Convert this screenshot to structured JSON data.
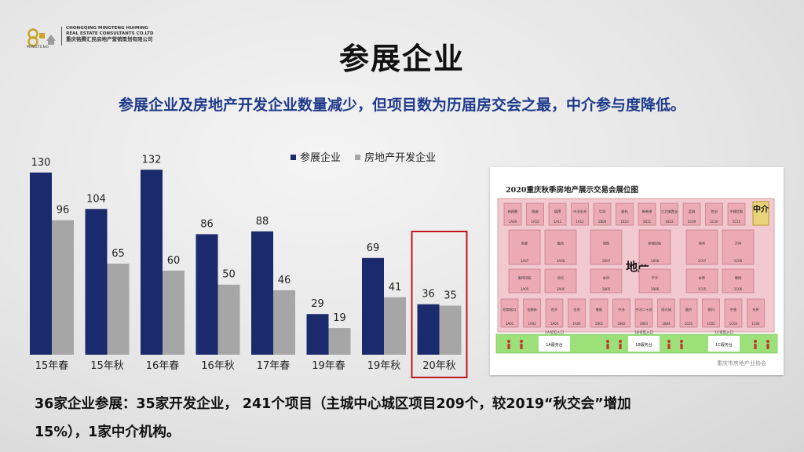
{
  "logo": {
    "en_line1": "CHONGQING MINGTENG HUIMING",
    "en_line2": "REAL ESTATE CONSULTANTS CO.LTD",
    "cn_name": "重庆铭腾汇民房地产营销策划有限公司",
    "brand": "MINGTENG"
  },
  "title": "参展企业",
  "subtitle": "参展企业及房地产开发企业数量减少，但项目数为历届房交会之最，中介参与度降低。",
  "chart_data": {
    "type": "bar",
    "categories": [
      "15年春",
      "15年秋",
      "16年春",
      "16年秋",
      "17年春",
      "19年春",
      "19年秋",
      "20年秋"
    ],
    "series": [
      {
        "name": "参展企业",
        "values": [
          130,
          104,
          132,
          86,
          88,
          29,
          69,
          36
        ],
        "color": "#1a2a6c"
      },
      {
        "name": "房地产开发企业",
        "values": [
          96,
          65,
          60,
          50,
          46,
          19,
          41,
          35
        ],
        "color": "#a6a6a6"
      }
    ],
    "ylim": [
      0,
      140
    ],
    "legend_position": "top-right",
    "highlight_category": "20年秋",
    "highlight_color": "#c0171d"
  },
  "floor_plan": {
    "title": "2020重庆秋季房地产展示交易会展位图",
    "zone_label": "地产",
    "agency_label": "中介",
    "watermark": "重庆市房地产业协会",
    "top_booths": [
      [
        "新鸥鹏",
        "1A09"
      ],
      [
        "融城",
        "1A10"
      ],
      [
        "德博",
        "1A11"
      ],
      [
        "中洽金鸿",
        "1A12"
      ],
      [
        "华润",
        "1B09"
      ],
      [
        "碧桂",
        "1B10"
      ],
      [
        "新希望",
        "1B11"
      ],
      [
        "江北嘴置业",
        "1B12"
      ],
      [
        "蓝城",
        "1C09"
      ],
      [
        "首创",
        "1C10"
      ],
      [
        "中建信和",
        "1C11"
      ]
    ],
    "mid_booths": [
      [
        "英豪",
        "1A07"
      ],
      [
        "融创",
        "1A08"
      ],
      [
        "旭辉",
        "1B07"
      ],
      [
        "新城控股",
        "1B08"
      ],
      [
        "保利",
        "1C07"
      ],
      [
        "万科",
        "1C08"
      ]
    ],
    "mid2_booths": [
      [
        "美邦控股",
        "1A05"
      ],
      [
        "协信",
        "1A06"
      ],
      [
        "金科",
        "1B05"
      ],
      [
        "华宇",
        "1B06"
      ],
      [
        "金辉",
        "1C05"
      ],
      [
        "康田",
        "1C06"
      ]
    ],
    "bottom_booths": [
      [
        "招商蛇口",
        "1A01"
      ],
      [
        "金融街",
        "1A02"
      ],
      [
        "首开",
        "1A03"
      ],
      [
        "金地",
        "1A04"
      ],
      [
        "鲁能",
        "1B01"
      ],
      [
        "中冶",
        "1B02"
      ],
      [
        "中冶二十冶",
        "1B03"
      ],
      [
        "阳光城",
        "1B04"
      ],
      [
        "融侨",
        "1C01"
      ],
      [
        "保利",
        "1C02"
      ],
      [
        "中铁",
        "1C03"
      ],
      [
        "东原",
        "1C04"
      ]
    ],
    "service_desks": [
      "1A服务台",
      "1B服务台",
      "1C服务台"
    ],
    "entrances": [
      "1A号馆入口",
      "1B号馆入口",
      "1C号馆入口"
    ]
  },
  "bottom_text": {
    "line1": "36家企业参展：35家开发企业， 241个项目（主城中心城区项目209个，较2019“秋交会”增加",
    "line2": "15%），1家中介机构。"
  }
}
